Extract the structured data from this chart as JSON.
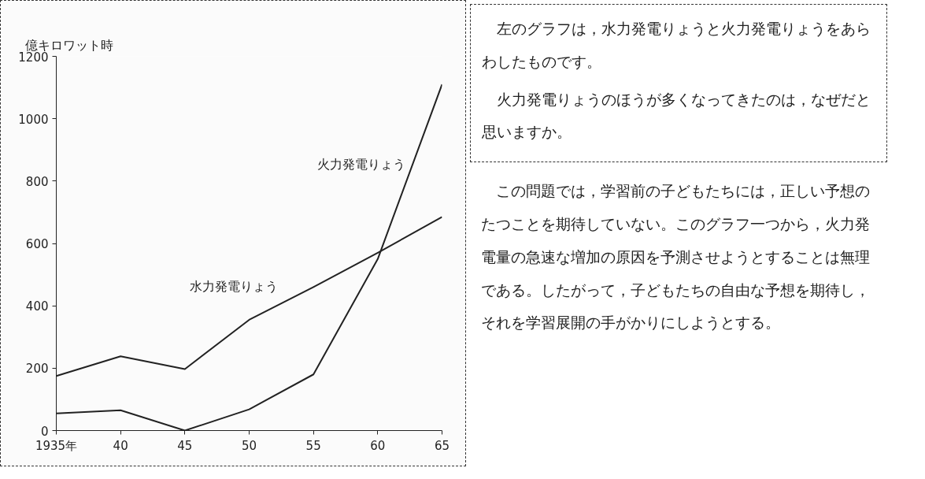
{
  "chart_data": {
    "type": "line",
    "ylabel": "億キロワット時",
    "x": [
      1935,
      1940,
      1945,
      1950,
      1955,
      1960,
      1965
    ],
    "xlim": [
      1935,
      1965
    ],
    "xticks": [
      {
        "value": 1935,
        "label": "1935年"
      },
      {
        "value": 1940,
        "label": "40"
      },
      {
        "value": 1945,
        "label": "45"
      },
      {
        "value": 1950,
        "label": "50"
      },
      {
        "value": 1955,
        "label": "55"
      },
      {
        "value": 1960,
        "label": "60"
      },
      {
        "value": 1965,
        "label": "65"
      }
    ],
    "ylim": [
      0,
      1200
    ],
    "yticks": [
      0,
      200,
      400,
      600,
      800,
      1000,
      1200
    ],
    "grid": false,
    "marker": "none",
    "line_style": "solid",
    "series": [
      {
        "name": "火力発電りょう",
        "color": "#222222",
        "values": [
          55,
          65,
          0,
          68,
          180,
          550,
          1110
        ]
      },
      {
        "name": "水力発電りょう",
        "color": "#222222",
        "values": [
          175,
          238,
          197,
          355,
          460,
          570,
          685
        ]
      }
    ],
    "annotations": [
      "左のグラフは，水力発電りょうと火力発電りょうをあらわしたものです。",
      "火力発電りょうのほうが多くなってきたのは，なぜだと思いますか。",
      "この問題では，学習前の子どもたちには，正しい予想のたつことを期待していない。このグラフ一つから，火力発電量の急速な増加の原因を予測させようとすることは無理である。したがって，子どもたちの自由な予想を期待し，それを学習展開の手がかりにしようとする。"
    ]
  }
}
